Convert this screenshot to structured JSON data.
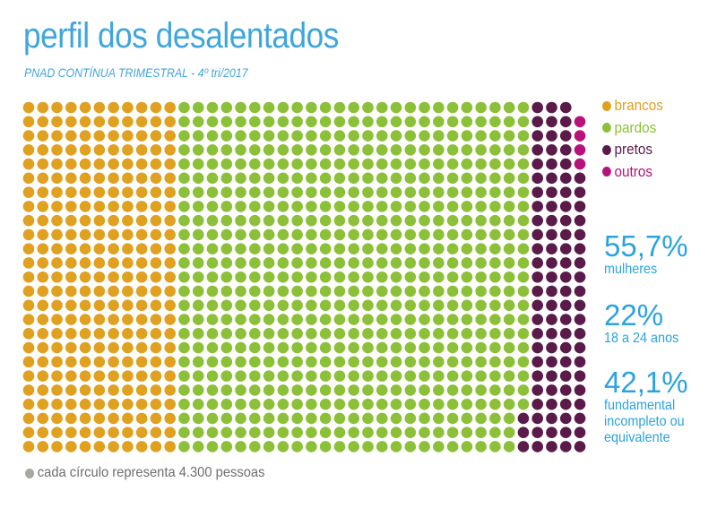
{
  "header": {
    "title": "perfil dos desalentados",
    "subtitle": "PNAD CONTÍNUA TRIMESTRAL - 4º tri/2017"
  },
  "chart_data": {
    "type": "waffle",
    "rows": 25,
    "columns": 40,
    "fill_order": "column-major, left to right, top to bottom within a column; 'outros' stacked at the top of the final column below one empty cell",
    "unit_value": 4300,
    "unit_label": "pessoas",
    "series": [
      {
        "name": "brancos",
        "count": 275,
        "color": "#e0a020"
      },
      {
        "name": "pardos",
        "count": 622,
        "color": "#8cc038"
      },
      {
        "name": "pretos",
        "count": 98,
        "color": "#5a1a4a"
      },
      {
        "name": "outros",
        "count": 4,
        "color": "#b8127a"
      }
    ],
    "legend_position": "right"
  },
  "stats": [
    {
      "value": "55,7%",
      "label": [
        "mulheres"
      ]
    },
    {
      "value": "22%",
      "label": [
        "18 a 24 anos"
      ]
    },
    {
      "value": "42,1%",
      "label": [
        "fundamental",
        "incompleto ou",
        "equivalente"
      ]
    }
  ],
  "footer": {
    "note": "cada círculo representa 4.300 pessoas",
    "dot_color": "#a8a8a0"
  }
}
